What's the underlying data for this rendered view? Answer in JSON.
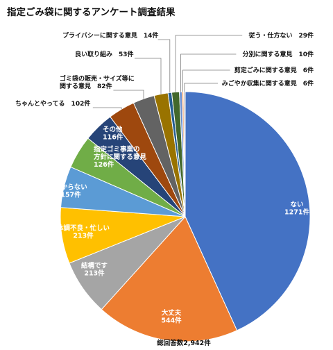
{
  "chart_data": {
    "type": "pie",
    "title": "指定ごみ袋に関するアンケート調査結果",
    "total_label": "総回答数2,942件",
    "slices": [
      {
        "label": "ない",
        "count_text": "1271件",
        "value": 1271,
        "color": "#4472C4"
      },
      {
        "label": "大丈夫",
        "count_text": "544件",
        "value": 544,
        "color": "#ED7D31"
      },
      {
        "label": "結構です",
        "count_text": "213件",
        "value": 213,
        "color": "#A5A5A5"
      },
      {
        "label": "体調不良・忙しい",
        "count_text": "213件",
        "value": 213,
        "color": "#FFC000"
      },
      {
        "label": "わからない",
        "count_text": "157件",
        "value": 157,
        "color": "#5B9BD5"
      },
      {
        "label": "指定ゴミ事業の方針に関する意見",
        "label_lines": [
          "指定ゴミ事業の",
          "方針に関する意見"
        ],
        "count_text": "126件",
        "value": 126,
        "color": "#70AD47"
      },
      {
        "label": "その他",
        "count_text": "116件",
        "value": 116,
        "color": "#264478"
      },
      {
        "label": "ちゃんとやってる",
        "count_text": "102件",
        "value": 102,
        "color": "#9E480E"
      },
      {
        "label": "ゴミ袋の販売・サイズ等に関する意見",
        "label_lines": [
          "ゴミ袋の販売・サイズ等に",
          "関する意見"
        ],
        "count_text": "82件",
        "value": 82,
        "color": "#636363"
      },
      {
        "label": "良い取り組み",
        "count_text": "53件",
        "value": 53,
        "color": "#997300"
      },
      {
        "label": "プライバシーに関する意見",
        "count_text": "14件",
        "value": 14,
        "color": "#255E91"
      },
      {
        "label": "従う・仕方ない",
        "count_text": "29件",
        "value": 29,
        "color": "#43682B"
      },
      {
        "label": "分別に関する意見",
        "count_text": "10件",
        "value": 10,
        "color": "#698ED0"
      },
      {
        "label": "剪定ごみに関する意見",
        "count_text": "6件",
        "value": 6,
        "color": "#F1975A"
      },
      {
        "label": "みごやか収集に関する意見",
        "count_text": "6件",
        "value": 6,
        "color": "#B7B7B7"
      }
    ]
  }
}
